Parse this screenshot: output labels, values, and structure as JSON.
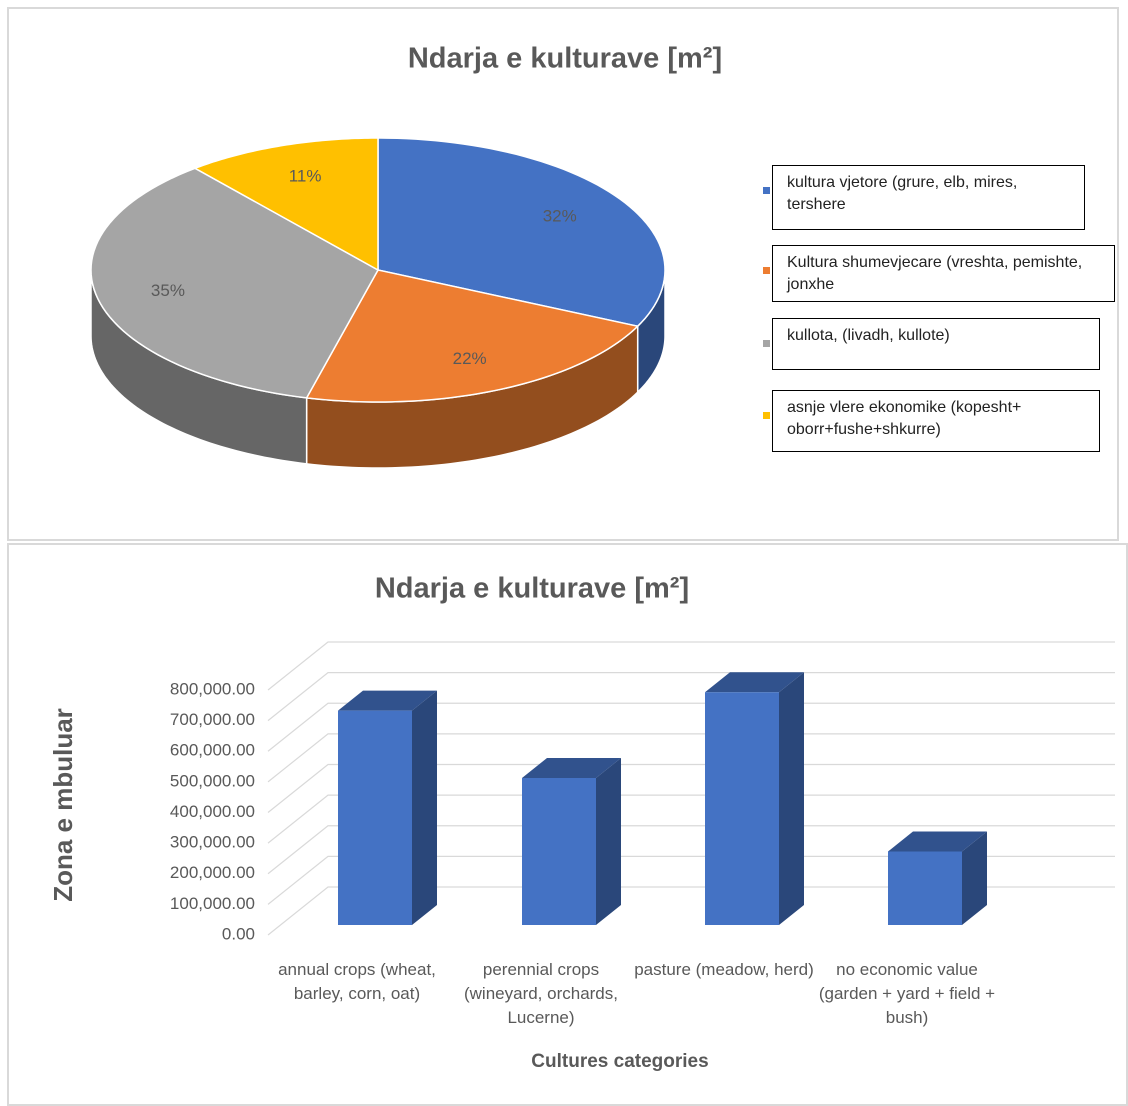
{
  "chart_data": [
    {
      "type": "pie",
      "title": "Ndarja e kulturave [m²]",
      "categories": [
        "kultura vjetore (grure, elb, mires, tershere",
        "Kultura shumevjecare (vreshta, pemishte, jonxhe",
        "kullota, (livadh, kullote)",
        "asnje vlere ekonomike (kopesht+ oborr+fushe+shkurre)"
      ],
      "values": [
        32,
        22,
        35,
        11
      ],
      "value_labels": [
        "32%",
        "22%",
        "35%",
        "11%"
      ],
      "colors": [
        "#4472c4",
        "#ed7d31",
        "#a5a5a5",
        "#ffc000"
      ]
    },
    {
      "type": "bar",
      "title": "Ndarja e kulturave [m²]",
      "categories": [
        "annual crops (wheat, barley, corn, oat)",
        "perennial crops (wineyard, orchards, Lucerne)",
        "pasture (meadow, herd)",
        "no economic value (garden + yard + field + bush)"
      ],
      "values": [
        700000,
        480000,
        760000,
        240000
      ],
      "color": "#4472c4",
      "ylim": [
        0,
        800000
      ],
      "yticks": [
        {
          "value": 0,
          "label": "0.00"
        },
        {
          "value": 100000,
          "label": "100,000.00"
        },
        {
          "value": 200000,
          "label": "200,000.00"
        },
        {
          "value": 300000,
          "label": "300,000.00"
        },
        {
          "value": 400000,
          "label": "400,000.00"
        },
        {
          "value": 500000,
          "label": "500,000.00"
        },
        {
          "value": 600000,
          "label": "600,000.00"
        },
        {
          "value": 700000,
          "label": "700,000.00"
        },
        {
          "value": 800000,
          "label": "800,000.00"
        }
      ],
      "ylabel": "Zona e mbuluar",
      "xlabel": "Cultures categories",
      "grid": true
    }
  ]
}
